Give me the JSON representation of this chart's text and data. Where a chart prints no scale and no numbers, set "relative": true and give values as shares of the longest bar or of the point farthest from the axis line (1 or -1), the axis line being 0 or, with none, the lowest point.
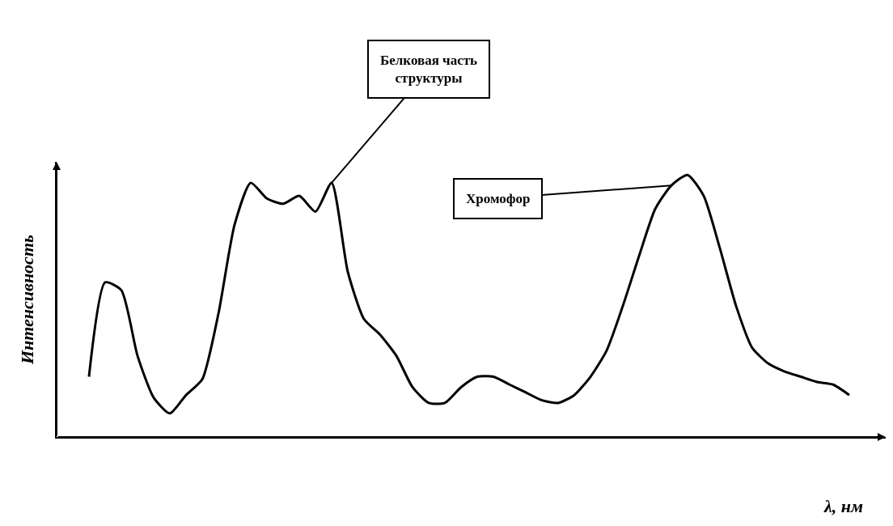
{
  "chart_data": {
    "type": "line",
    "relative": true,
    "xlabel": "λ, нм",
    "ylabel": "Интенсивность",
    "color": "#000000",
    "marker": "none",
    "line_style": "solid",
    "categories": [
      null,
      null,
      null,
      null,
      null,
      null,
      null,
      null,
      null,
      null,
      null,
      null,
      null,
      null,
      null,
      null,
      null,
      null,
      null,
      null,
      null,
      null,
      null,
      null,
      null,
      null,
      null,
      null,
      null,
      null,
      null,
      null,
      null,
      null,
      null,
      null,
      null,
      null,
      null,
      null,
      null,
      null,
      null,
      null,
      null,
      null,
      null,
      null
    ],
    "values": [
      0.23,
      0.59,
      0.56,
      0.31,
      0.15,
      0.09,
      0.16,
      0.22,
      0.47,
      0.81,
      0.97,
      0.91,
      0.89,
      0.92,
      0.86,
      0.97,
      0.63,
      0.45,
      0.39,
      0.31,
      0.19,
      0.13,
      0.13,
      0.19,
      0.23,
      0.23,
      0.2,
      0.17,
      0.14,
      0.13,
      0.16,
      0.23,
      0.33,
      0.5,
      0.69,
      0.87,
      0.96,
      1.0,
      0.92,
      0.72,
      0.5,
      0.34,
      0.28,
      0.25,
      0.23,
      0.21,
      0.2,
      0.16
    ],
    "annotations": [
      "Белковая часть структуры",
      "Хромофор"
    ]
  }
}
